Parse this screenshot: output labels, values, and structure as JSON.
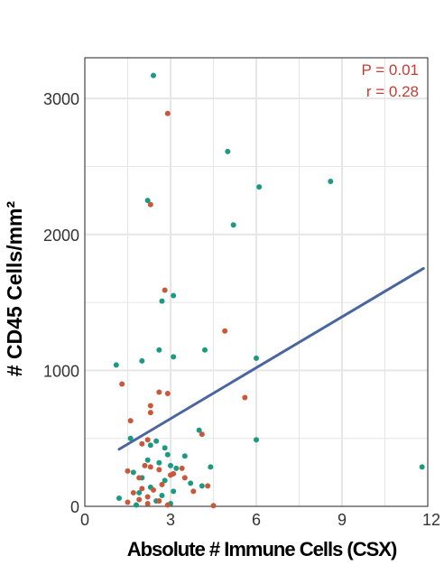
{
  "chart_data": {
    "type": "scatter",
    "title": "",
    "xlabel": "Absolute # Immune Cells (CSX)",
    "ylabel": "# CD45 Cells/mm²",
    "xlim": [
      0,
      12
    ],
    "ylim": [
      0,
      3300
    ],
    "x_ticks": [
      "0",
      "3",
      "6",
      "9",
      "12"
    ],
    "y_ticks": [
      "0",
      "1000",
      "2000",
      "3000"
    ],
    "x_tick_values": [
      0,
      3,
      6,
      9,
      12
    ],
    "y_tick_values": [
      0,
      1000,
      2000,
      3000
    ],
    "grid": true,
    "legend": "none",
    "colors": {
      "teal": "#1a9a83",
      "orange": "#c9583b",
      "line": "#4a66a0",
      "annotation": "#c43c33",
      "grid": "#e6e6e6"
    },
    "annotations": [
      "P = 0.01",
      "r = 0.28"
    ],
    "regression_line": {
      "x": [
        1.2,
        11.85
      ],
      "y": [
        420,
        1750
      ]
    },
    "series": [
      {
        "color": "#1a9a83",
        "points": [
          [
            2.4,
            3170
          ],
          [
            5.0,
            2610
          ],
          [
            6.1,
            2350
          ],
          [
            8.6,
            2390
          ],
          [
            5.2,
            2070
          ],
          [
            2.2,
            2250
          ],
          [
            3.1,
            1550
          ],
          [
            2.7,
            1510
          ],
          [
            2.6,
            1150
          ],
          [
            4.2,
            1150
          ],
          [
            3.1,
            1100
          ],
          [
            2.0,
            1070
          ],
          [
            6.0,
            1090
          ],
          [
            1.1,
            1040
          ],
          [
            4.0,
            560
          ],
          [
            6.0,
            490
          ],
          [
            11.8,
            290
          ],
          [
            1.6,
            500
          ],
          [
            2.5,
            480
          ],
          [
            2.3,
            450
          ],
          [
            2.8,
            430
          ],
          [
            2.9,
            380
          ],
          [
            3.5,
            370
          ],
          [
            2.2,
            340
          ],
          [
            2.6,
            320
          ],
          [
            3.0,
            300
          ],
          [
            3.2,
            280
          ],
          [
            4.4,
            290
          ],
          [
            1.7,
            250
          ],
          [
            2.0,
            210
          ],
          [
            2.8,
            190
          ],
          [
            3.7,
            170
          ],
          [
            4.1,
            150
          ],
          [
            2.3,
            140
          ],
          [
            3.1,
            110
          ],
          [
            1.9,
            100
          ],
          [
            2.7,
            80
          ],
          [
            1.2,
            60
          ],
          [
            2.5,
            40
          ],
          [
            3.0,
            20
          ],
          [
            1.8,
            10
          ]
        ]
      },
      {
        "color": "#c9583b",
        "points": [
          [
            2.9,
            2890
          ],
          [
            2.3,
            2220
          ],
          [
            2.8,
            1590
          ],
          [
            4.9,
            1290
          ],
          [
            1.3,
            900
          ],
          [
            2.6,
            840
          ],
          [
            2.9,
            830
          ],
          [
            5.6,
            800
          ],
          [
            2.3,
            740
          ],
          [
            2.3,
            690
          ],
          [
            1.6,
            630
          ],
          [
            4.1,
            530
          ],
          [
            2.2,
            490
          ],
          [
            2.0,
            460
          ],
          [
            1.5,
            260
          ],
          [
            2.1,
            300
          ],
          [
            2.3,
            290
          ],
          [
            2.6,
            270
          ],
          [
            3.4,
            280
          ],
          [
            3.1,
            240
          ],
          [
            3.0,
            230
          ],
          [
            1.9,
            210
          ],
          [
            3.5,
            210
          ],
          [
            2.7,
            160
          ],
          [
            4.3,
            150
          ],
          [
            2.0,
            130
          ],
          [
            2.4,
            120
          ],
          [
            3.8,
            110
          ],
          [
            1.7,
            100
          ],
          [
            2.2,
            70
          ],
          [
            1.9,
            50
          ],
          [
            2.6,
            40
          ],
          [
            1.5,
            30
          ],
          [
            2.2,
            20
          ],
          [
            2.9,
            10
          ],
          [
            4.5,
            5
          ]
        ]
      }
    ]
  }
}
